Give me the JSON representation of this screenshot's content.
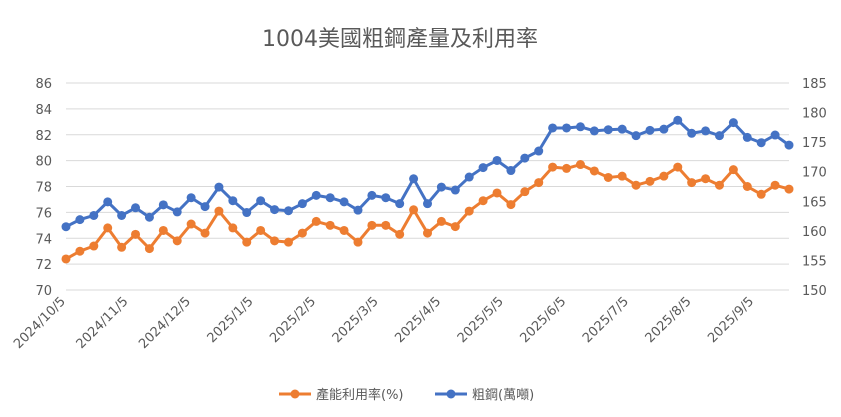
{
  "chart_data": {
    "type": "line",
    "title": "1004美國粗鋼產量及利用率",
    "x_tick_labels": [
      "2024/10/5",
      "2024/11/5",
      "2024/12/5",
      "2025/1/5",
      "2025/2/5",
      "2025/3/5",
      "2025/4/5",
      "2025/5/5",
      "2025/6/5",
      "2025/7/5",
      "2025/8/5",
      "2025/9/5"
    ],
    "y_left": {
      "min": 70,
      "max": 86,
      "step": 2,
      "ticks": [
        "70",
        "72",
        "74",
        "76",
        "78",
        "80",
        "82",
        "84",
        "86"
      ]
    },
    "y_right": {
      "min": 150,
      "max": 185,
      "step": 5,
      "ticks": [
        "150",
        "155",
        "160",
        "165",
        "170",
        "175",
        "180",
        "185"
      ]
    },
    "legend_position": "bottom",
    "series": [
      {
        "name": "產能利用率(%)",
        "axis": "left",
        "color": "#ED7D31",
        "values": [
          72.4,
          73.0,
          73.4,
          74.8,
          73.3,
          74.3,
          73.2,
          74.6,
          73.8,
          75.1,
          74.4,
          76.1,
          74.8,
          73.7,
          74.6,
          73.8,
          73.7,
          74.4,
          75.3,
          75.0,
          74.6,
          73.7,
          75.0,
          75.0,
          74.3,
          76.2,
          74.4,
          75.3,
          74.9,
          76.1,
          76.9,
          77.5,
          76.6,
          77.6,
          78.3,
          79.5,
          79.4,
          79.7,
          79.2,
          78.7,
          78.8,
          78.1,
          78.4,
          78.8,
          79.5,
          78.3,
          78.6,
          78.1,
          79.3,
          78.0,
          77.4,
          78.1,
          77.8
        ]
      },
      {
        "name": "粗鋼(萬噸)",
        "axis": "right",
        "color": "#4472C4",
        "values": [
          160.7,
          161.9,
          162.6,
          164.9,
          162.6,
          163.9,
          162.3,
          164.4,
          163.2,
          165.6,
          164.1,
          167.4,
          165.1,
          163.1,
          165.1,
          163.6,
          163.4,
          164.6,
          166.0,
          165.6,
          164.9,
          163.5,
          166.0,
          165.6,
          164.6,
          168.8,
          164.6,
          167.4,
          166.9,
          169.1,
          170.7,
          171.9,
          170.2,
          172.3,
          173.5,
          177.4,
          177.4,
          177.6,
          176.9,
          177.1,
          177.2,
          176.1,
          177.0,
          177.2,
          178.7,
          176.5,
          176.9,
          176.1,
          178.3,
          175.8,
          174.9,
          176.2,
          174.5
        ]
      }
    ]
  }
}
